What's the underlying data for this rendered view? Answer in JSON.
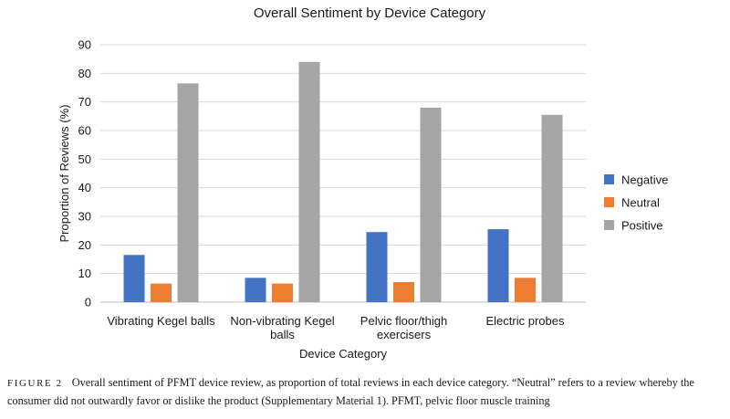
{
  "chart_data": {
    "type": "bar",
    "title": "Overall Sentiment by Device Category",
    "xlabel": "Device Category",
    "ylabel": "Proportion of Reviews (%)",
    "ylim": [
      0,
      90
    ],
    "yticks": [
      0,
      10,
      20,
      30,
      40,
      50,
      60,
      70,
      80,
      90
    ],
    "grid": true,
    "legend_position": "right",
    "categories": [
      [
        "Vibrating Kegel balls"
      ],
      [
        "Non-vibrating Kegel",
        "balls"
      ],
      [
        "Pelvic floor/thigh",
        "exercisers"
      ],
      [
        "Electric probes"
      ]
    ],
    "series": [
      {
        "name": "Negative",
        "color": "#4472c4",
        "values": [
          16.5,
          8.5,
          24.5,
          25.5
        ]
      },
      {
        "name": "Neutral",
        "color": "#ed7d31",
        "values": [
          6.5,
          6.5,
          7,
          8.5
        ]
      },
      {
        "name": "Positive",
        "color": "#a5a5a5",
        "values": [
          76.5,
          84,
          68,
          65.5
        ]
      }
    ]
  },
  "caption": {
    "label": "FIGURE 2",
    "text": "Overall sentiment of PFMT device review, as proportion of total reviews in each device category. “Neutral” refers to a review whereby the consumer did not outwardly favor or dislike the product (Supplementary Material 1). PFMT, pelvic floor muscle training"
  }
}
